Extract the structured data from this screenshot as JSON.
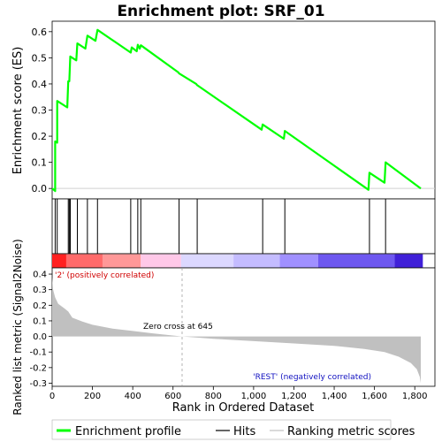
{
  "title": "Enrichment plot: SRF_01",
  "chart_data": {
    "type": "line",
    "title": "Enrichment plot: SRF_01",
    "xlabel": "Rank in Ordered Dataset",
    "xlim": [
      0,
      1900
    ],
    "xticks": [
      0,
      200,
      400,
      600,
      800,
      1000,
      1200,
      1400,
      1600,
      1800
    ],
    "xtick_labels": [
      "0",
      "200",
      "400",
      "600",
      "800",
      "1,000",
      "1,200",
      "1,400",
      "1,600",
      "1,800"
    ],
    "es_panel": {
      "ylabel": "Enrichment score (ES)",
      "ylim": [
        -0.04,
        0.64
      ],
      "yticks": [
        0.0,
        0.1,
        0.2,
        0.3,
        0.4,
        0.5,
        0.6
      ],
      "ytick_labels": [
        "0.0",
        "0.1",
        "0.2",
        "0.3",
        "0.4",
        "0.5",
        "0.6"
      ],
      "series_name": "Enrichment profile",
      "color": "#00ff00",
      "points": [
        [
          0,
          0.0
        ],
        [
          15,
          -0.01
        ],
        [
          15,
          0.18
        ],
        [
          25,
          0.175
        ],
        [
          25,
          0.335
        ],
        [
          75,
          0.31
        ],
        [
          80,
          0.41
        ],
        [
          85,
          0.41
        ],
        [
          90,
          0.505
        ],
        [
          120,
          0.49
        ],
        [
          125,
          0.555
        ],
        [
          165,
          0.535
        ],
        [
          175,
          0.585
        ],
        [
          215,
          0.565
        ],
        [
          225,
          0.607
        ],
        [
          390,
          0.52
        ],
        [
          395,
          0.54
        ],
        [
          420,
          0.525
        ],
        [
          425,
          0.55
        ],
        [
          435,
          0.535
        ],
        [
          440,
          0.548
        ],
        [
          625,
          0.445
        ],
        [
          630,
          0.44
        ],
        [
          715,
          0.4
        ],
        [
          720,
          0.395
        ],
        [
          1040,
          0.225
        ],
        [
          1045,
          0.245
        ],
        [
          1150,
          0.19
        ],
        [
          1155,
          0.22
        ],
        [
          1570,
          -0.005
        ],
        [
          1575,
          0.06
        ],
        [
          1650,
          0.022
        ],
        [
          1655,
          0.1
        ],
        [
          1830,
          0.0
        ]
      ]
    },
    "hits": [
      15,
      25,
      80,
      85,
      90,
      125,
      175,
      225,
      390,
      425,
      440,
      630,
      720,
      1045,
      1155,
      1575,
      1655
    ],
    "gradient_bar": {
      "labels_pos": "'2' (positively correlated)",
      "labels_neg": "'REST' (negatively correlated)",
      "stops": [
        [
          0.0,
          "#ff2a2a"
        ],
        [
          0.1,
          "#ff6060"
        ],
        [
          0.2,
          "#ff9a9a"
        ],
        [
          0.26,
          "#ffc0e8"
        ],
        [
          0.34,
          "#ffd8f0"
        ],
        [
          0.38,
          "#e8e0ff"
        ],
        [
          0.5,
          "#d0c8ff"
        ],
        [
          0.6,
          "#b8a8ff"
        ],
        [
          0.7,
          "#9080ff"
        ],
        [
          0.8,
          "#6a50f0"
        ],
        [
          0.9,
          "#4020e0"
        ],
        [
          1.0,
          "#3010c0"
        ]
      ],
      "segments": [
        {
          "start": 0,
          "end": 70,
          "color": "#ff2020"
        },
        {
          "start": 70,
          "end": 250,
          "color": "#ff6a6a"
        },
        {
          "start": 250,
          "end": 440,
          "color": "#ff9898"
        },
        {
          "start": 440,
          "end": 640,
          "color": "#ffc8e8"
        },
        {
          "start": 640,
          "end": 900,
          "color": "#dcd8ff"
        },
        {
          "start": 900,
          "end": 1130,
          "color": "#c4bcff"
        },
        {
          "start": 1130,
          "end": 1320,
          "color": "#a090ff"
        },
        {
          "start": 1320,
          "end": 1700,
          "color": "#6e58f0"
        },
        {
          "start": 1700,
          "end": 1840,
          "color": "#4020d8"
        }
      ]
    },
    "metric_panel": {
      "ylabel": "Ranked list metric (Signal2Noise)",
      "ylim": [
        -0.32,
        0.44
      ],
      "yticks": [
        -0.3,
        -0.2,
        -0.1,
        0.0,
        0.1,
        0.2,
        0.3,
        0.4
      ],
      "ytick_labels": [
        "-0.3",
        "-0.2",
        "-0.1",
        "0.0",
        "0.1",
        "0.2",
        "0.3",
        "0.4"
      ],
      "fill_color": "#c0c0c0",
      "points": [
        [
          0,
          0.38
        ],
        [
          5,
          0.3
        ],
        [
          15,
          0.25
        ],
        [
          30,
          0.21
        ],
        [
          60,
          0.18
        ],
        [
          80,
          0.16
        ],
        [
          100,
          0.12
        ],
        [
          150,
          0.095
        ],
        [
          200,
          0.075
        ],
        [
          300,
          0.05
        ],
        [
          400,
          0.035
        ],
        [
          500,
          0.02
        ],
        [
          645,
          0.0
        ],
        [
          800,
          -0.015
        ],
        [
          1000,
          -0.03
        ],
        [
          1200,
          -0.045
        ],
        [
          1400,
          -0.06
        ],
        [
          1550,
          -0.08
        ],
        [
          1650,
          -0.1
        ],
        [
          1720,
          -0.13
        ],
        [
          1780,
          -0.17
        ],
        [
          1810,
          -0.21
        ],
        [
          1825,
          -0.26
        ],
        [
          1830,
          -0.3
        ]
      ],
      "zero_cross_label": "Zero cross at 645",
      "zero_cross": 645
    },
    "legend": {
      "position": "bottom",
      "items": [
        {
          "label": "Enrichment profile",
          "color": "#00ff00",
          "style": "line-thick"
        },
        {
          "label": "Hits",
          "color": "#000000",
          "style": "line"
        },
        {
          "label": "Ranking metric scores",
          "color": "#c0c0c0",
          "style": "line"
        }
      ]
    }
  }
}
